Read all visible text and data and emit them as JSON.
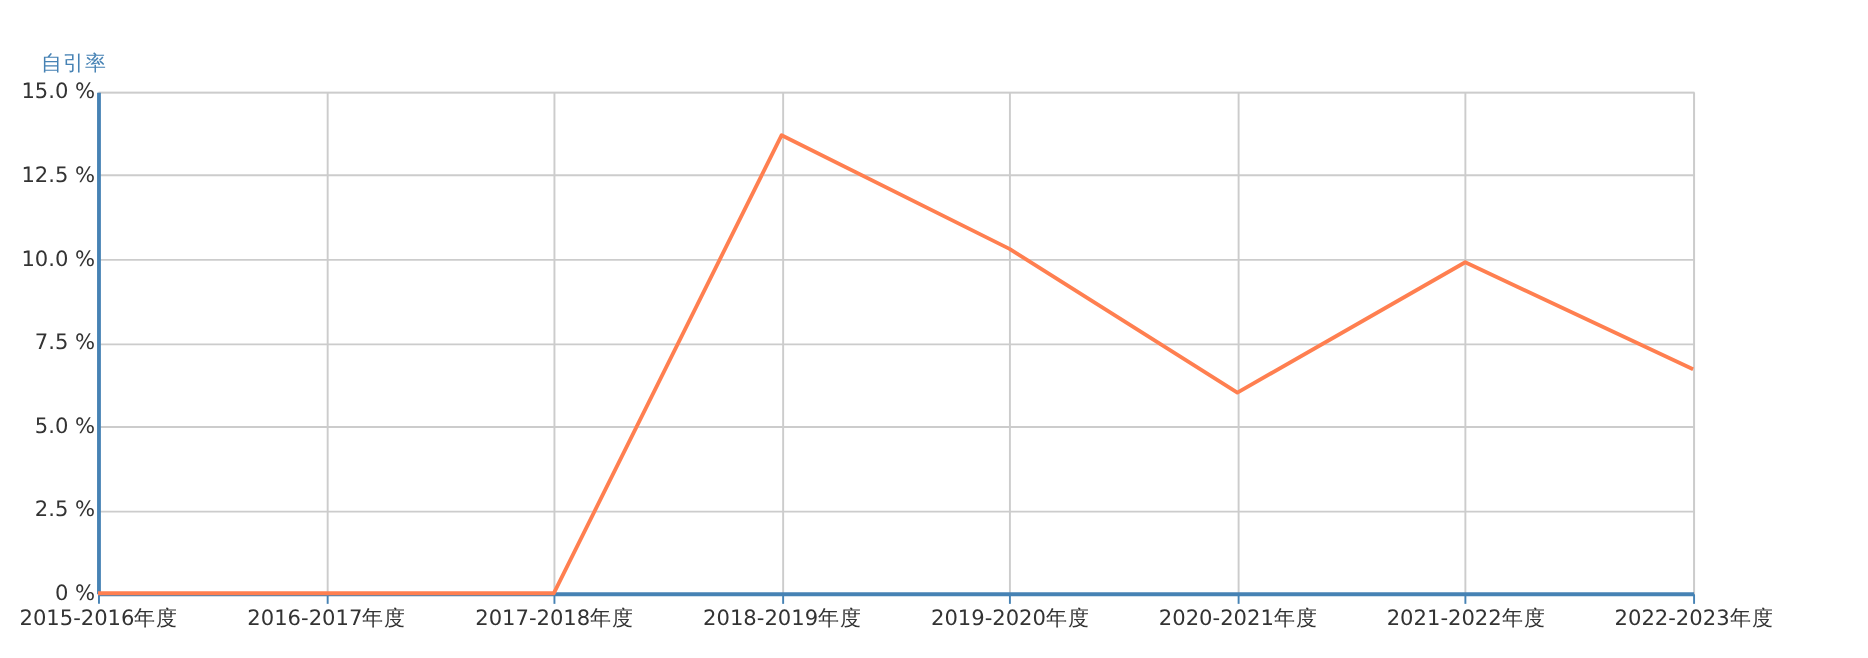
{
  "chart_data": {
    "type": "line",
    "ylabel": "自引率",
    "categories": [
      "2015-2016年度",
      "2016-2017年度",
      "2017-2018年度",
      "2018-2019年度",
      "2019-2020年度",
      "2020-2021年度",
      "2021-2022年度",
      "2022-2023年度"
    ],
    "series": [
      {
        "color": "#ff7f50",
        "values": [
          0,
          0,
          0,
          13.7,
          10.3,
          6.0,
          9.9,
          6.7
        ]
      }
    ],
    "ylim": [
      0,
      15
    ],
    "yticks": [
      {
        "value": 0,
        "label": "0 %"
      },
      {
        "value": 2.5,
        "label": "2.5 %"
      },
      {
        "value": 5,
        "label": "5.0 %"
      },
      {
        "value": 7.5,
        "label": "7.5 %"
      },
      {
        "value": 10,
        "label": "10.0 %"
      },
      {
        "value": 12.5,
        "label": "12.5 %"
      },
      {
        "value": 15,
        "label": "15.0 %"
      }
    ],
    "grid": true,
    "marker": "none",
    "line_style": "solid"
  }
}
